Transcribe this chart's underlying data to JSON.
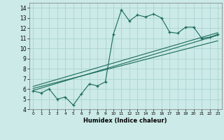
{
  "xlabel": "Humidex (Indice chaleur)",
  "bg_color": "#cceae7",
  "grid_color": "#aad4d0",
  "line_color": "#1a6b5a",
  "xlim": [
    -0.5,
    23.5
  ],
  "ylim": [
    4,
    14.5
  ],
  "xticks": [
    0,
    1,
    2,
    3,
    4,
    5,
    6,
    7,
    8,
    9,
    10,
    11,
    12,
    13,
    14,
    15,
    16,
    17,
    18,
    19,
    20,
    21,
    22,
    23
  ],
  "yticks": [
    4,
    5,
    6,
    7,
    8,
    9,
    10,
    11,
    12,
    13,
    14
  ],
  "main_x": [
    0,
    1,
    2,
    3,
    4,
    5,
    6,
    7,
    8,
    9,
    10,
    11,
    12,
    13,
    14,
    15,
    16,
    17,
    18,
    19,
    20,
    21,
    22,
    23
  ],
  "main_y": [
    5.8,
    5.6,
    6.0,
    5.0,
    5.2,
    4.4,
    5.5,
    6.5,
    6.3,
    6.7,
    11.4,
    13.8,
    12.7,
    13.3,
    13.1,
    13.4,
    13.0,
    11.6,
    11.5,
    12.1,
    12.1,
    11.0,
    11.1,
    11.4
  ],
  "trend1_x": [
    0,
    23
  ],
  "trend1_y": [
    5.85,
    11.3
  ],
  "trend2_x": [
    0,
    23
  ],
  "trend2_y": [
    6.05,
    10.75
  ],
  "trend3_x": [
    0,
    23
  ],
  "trend3_y": [
    6.25,
    11.55
  ]
}
